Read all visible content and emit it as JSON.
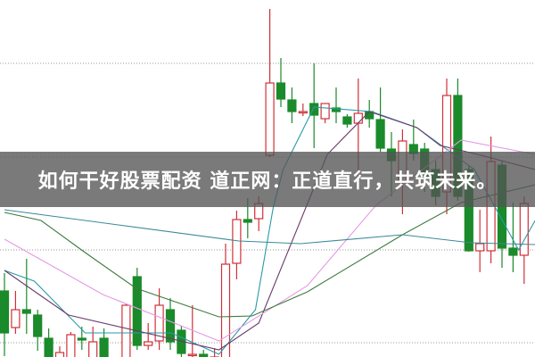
{
  "banner": {
    "text": "如何干好股票配资 道正网：正道直行，共筑未来。"
  },
  "chart_data": {
    "type": "candlestick",
    "title": "",
    "xlabel": "",
    "ylabel": "",
    "axes_visible": false,
    "grid": "horizontal dotted",
    "gridlines": [
      34.9,
      24.4,
      14.0,
      3.6
    ],
    "ylim": [
      -2,
      42
    ],
    "colors": {
      "up": "#d0303a",
      "down": "#1a8a2a",
      "grid": "#999999"
    },
    "candles_columns": [
      "open",
      "high",
      "low",
      "close"
    ],
    "candles": [
      [
        9.4,
        11.4,
        2.1,
        4.7
      ],
      [
        5.3,
        9.4,
        4.6,
        7.3
      ],
      [
        7.3,
        13.0,
        4.6,
        6.9
      ],
      [
        6.7,
        7.3,
        2.7,
        4.3
      ],
      [
        4.1,
        5.2,
        1.0,
        1.5
      ],
      [
        1.0,
        3.2,
        0.5,
        2.5
      ],
      [
        1.0,
        4.8,
        0.5,
        4.5
      ],
      [
        4.1,
        5.4,
        2.8,
        3.9
      ],
      [
        1.0,
        5.4,
        0.5,
        3.7
      ],
      [
        4.1,
        5.2,
        1.0,
        1.8
      ],
      [
        0.8,
        2.0,
        0.2,
        1.5
      ],
      [
        1.0,
        8.0,
        0.5,
        7.8
      ],
      [
        11.0,
        12.0,
        2.8,
        3.3
      ],
      [
        3.3,
        5.8,
        2.8,
        3.7
      ],
      [
        3.8,
        9.7,
        2.8,
        7.8
      ],
      [
        7.3,
        8.6,
        2.8,
        3.7
      ],
      [
        5.0,
        5.5,
        2.0,
        2.4
      ],
      [
        2.2,
        7.8,
        1.5,
        2.3
      ],
      [
        2.3,
        2.8,
        1.0,
        1.5
      ],
      [
        1.0,
        3.0,
        0.5,
        2.0
      ],
      [
        1.5,
        14.7,
        1.0,
        12.4
      ],
      [
        12.5,
        18.4,
        10.7,
        17.4
      ],
      [
        17.4,
        19.8,
        15.3,
        17.1
      ],
      [
        17.5,
        20.0,
        16.1,
        19.2
      ],
      [
        24.6,
        41.0,
        24.4,
        32.7
      ],
      [
        32.7,
        35.5,
        30.0,
        30.9
      ],
      [
        30.8,
        32.2,
        28.2,
        29.5
      ],
      [
        29.4,
        30.4,
        29.0,
        29.5
      ],
      [
        30.4,
        34.9,
        25.4,
        29.1
      ],
      [
        28.7,
        30.4,
        28.2,
        30.4
      ],
      [
        29.9,
        32.2,
        28.2,
        29.5
      ],
      [
        28.9,
        29.2,
        27.7,
        28.1
      ],
      [
        28.2,
        33.2,
        21.5,
        29.3
      ],
      [
        29.5,
        30.8,
        27.7,
        28.7
      ],
      [
        28.6,
        32.2,
        25.0,
        25.4
      ],
      [
        25.3,
        27.2,
        20.0,
        24.0
      ],
      [
        21.7,
        27.5,
        18.0,
        26.2
      ],
      [
        25.8,
        28.6,
        24.0,
        24.8
      ],
      [
        25.3,
        26.0,
        20.5,
        22.0
      ],
      [
        23.0,
        24.0,
        19.0,
        20.0
      ],
      [
        20.5,
        33.2,
        18.0,
        31.3
      ],
      [
        31.3,
        33.2,
        19.5,
        20.0
      ],
      [
        23.0,
        23.5,
        13.8,
        13.9
      ],
      [
        13.9,
        18.5,
        11.5,
        14.7
      ],
      [
        13.9,
        26.7,
        12.5,
        23.9
      ],
      [
        23.5,
        24.0,
        12.0,
        14.2
      ],
      [
        14.2,
        19.3,
        11.5,
        13.4
      ],
      [
        13.4,
        20.0,
        10.2,
        19.2
      ]
    ],
    "moving_averages": [
      {
        "color": "#2a9aa8",
        "points": [
          [
            0,
            11.7
          ],
          [
            2.7,
            10.5
          ],
          [
            7.3,
            4.7
          ],
          [
            15.1,
            4.7
          ],
          [
            19.4,
            2.3
          ],
          [
            22.7,
            7.3
          ],
          [
            24.3,
            18.7
          ],
          [
            25.2,
            23.0
          ],
          [
            28,
            30.0
          ],
          [
            33.2,
            29.5
          ],
          [
            37.3,
            27.7
          ],
          [
            40.3,
            25.0
          ],
          [
            42.5,
            23.0
          ],
          [
            46.5,
            14.0
          ],
          [
            48,
            17.3
          ]
        ]
      },
      {
        "color": "#6a3a6a",
        "points": [
          [
            0,
            11.7
          ],
          [
            5.8,
            6.7
          ],
          [
            19.4,
            2.8
          ],
          [
            23,
            5.8
          ],
          [
            28,
            21.0
          ],
          [
            29.2,
            24.7
          ],
          [
            33,
            29.5
          ],
          [
            37.3,
            27.7
          ],
          [
            39.4,
            25.7
          ],
          [
            42.8,
            24.7
          ],
          [
            48,
            23.0
          ]
        ]
      },
      {
        "color": "#e49ae4",
        "points": [
          [
            0,
            15.2
          ],
          [
            8.9,
            9.0
          ],
          [
            19.4,
            3.8
          ],
          [
            27.4,
            10.0
          ],
          [
            33.6,
            19.0
          ],
          [
            41.3,
            26.3
          ],
          [
            48,
            24.7
          ]
        ]
      },
      {
        "color": "#3d7a3d",
        "points": [
          [
            0,
            18.2
          ],
          [
            3.3,
            17.3
          ],
          [
            7.3,
            13.7
          ],
          [
            11.9,
            9.7
          ],
          [
            19.4,
            6.5
          ],
          [
            22.4,
            6.6
          ],
          [
            27.4,
            9.3
          ],
          [
            36,
            15.7
          ],
          [
            41.3,
            19.3
          ],
          [
            48,
            21.3
          ]
        ]
      },
      {
        "color": "#3a8a9a",
        "points": [
          [
            0,
            18.5
          ],
          [
            21.2,
            15.0
          ],
          [
            26.8,
            14.7
          ],
          [
            36,
            15.7
          ],
          [
            42.2,
            14.8
          ],
          [
            48,
            14.6
          ]
        ]
      }
    ]
  }
}
